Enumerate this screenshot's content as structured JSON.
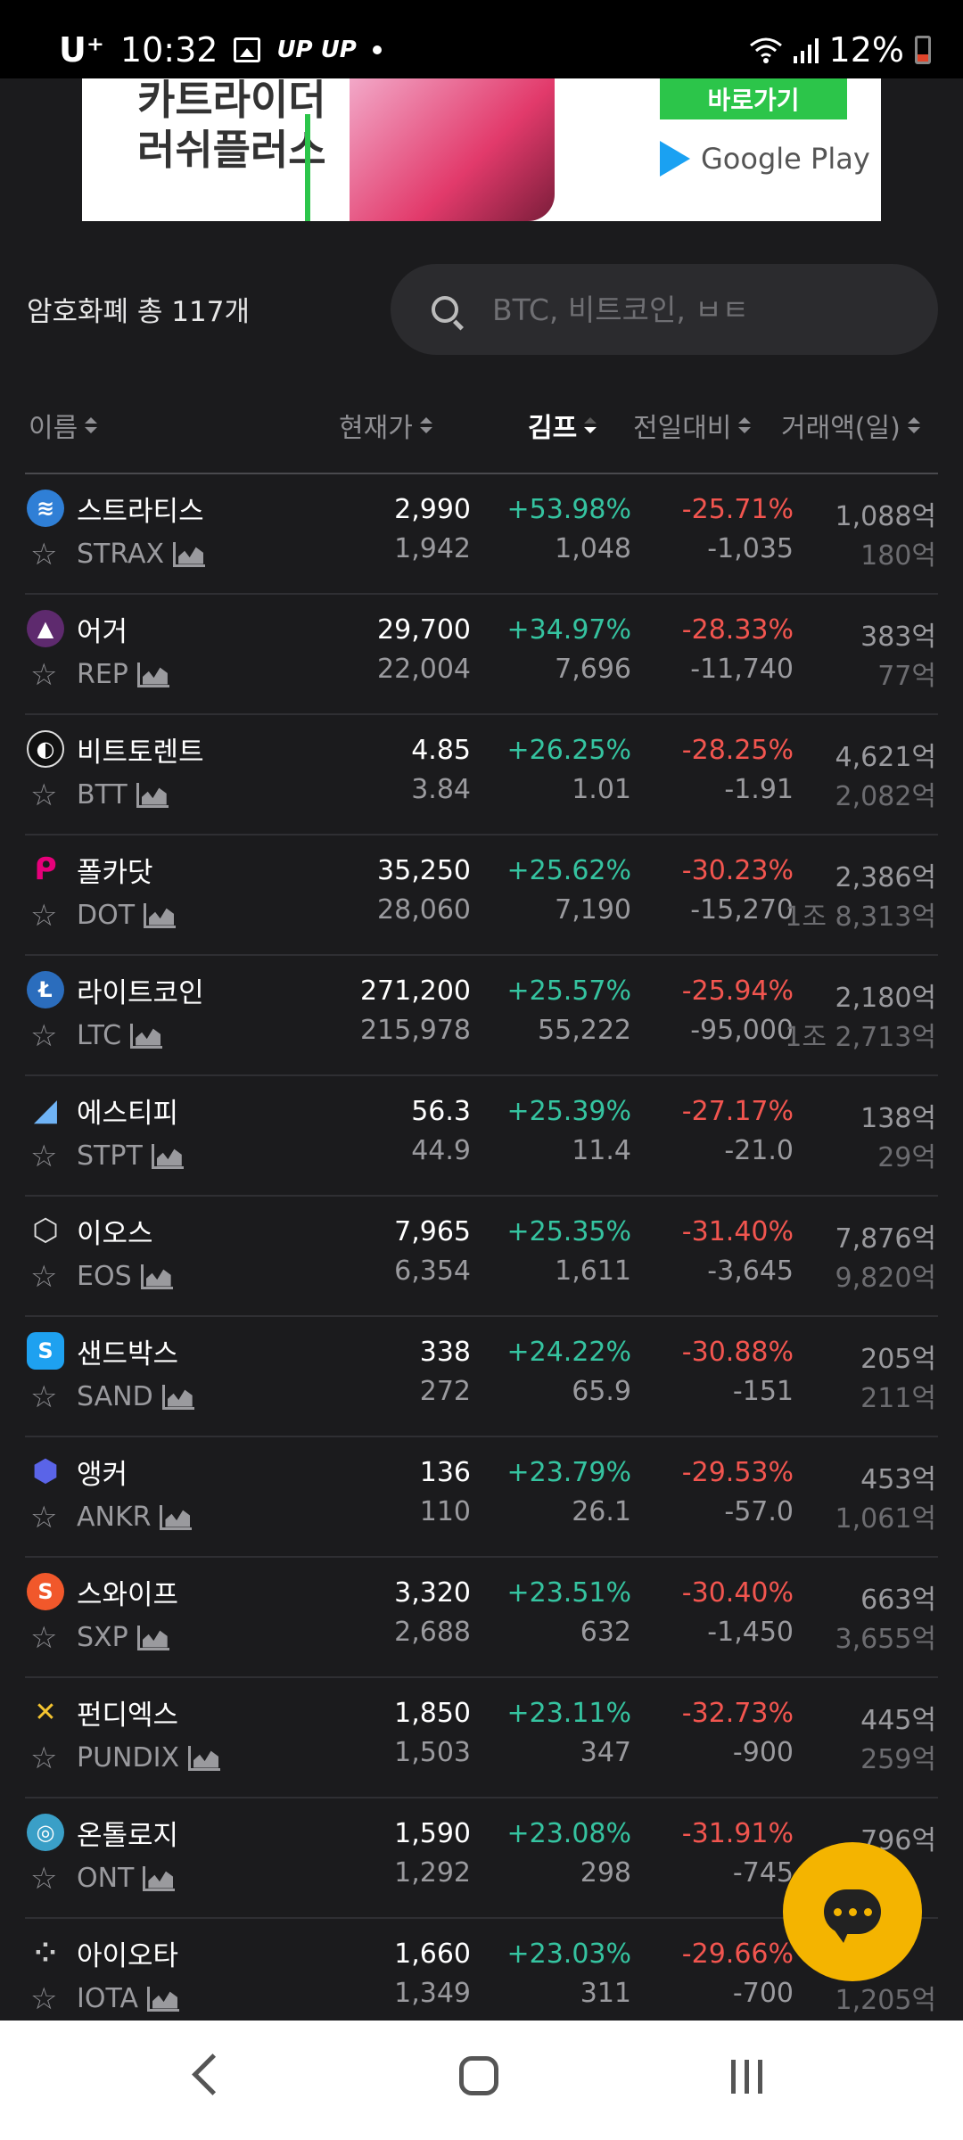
{
  "status_bar": {
    "carrier": "U⁺",
    "time": "10:32",
    "app_label": "UP UP",
    "battery": "12%"
  },
  "ad": {
    "headline": "카트라이더\n러쉬플러스",
    "cta": "바로가기",
    "store": "Google Play"
  },
  "header": {
    "count_label": "암호화폐 총 117개"
  },
  "search": {
    "placeholder": "BTC, 비트코인, ㅂㅌ"
  },
  "columns": {
    "name": "이름",
    "price": "현재가",
    "kimp": "김프",
    "change": "전일대비",
    "volume": "거래액(일)"
  },
  "rows": [
    {
      "name": "스트라티스",
      "ticker": "STRAX",
      "price": "2,990",
      "price_sub": "1,942",
      "kimp": "+53.98%",
      "kimp_sub": "1,048",
      "change": "-25.71%",
      "change_sub": "-1,035",
      "vol": "1,088억",
      "vol_sub": "180억",
      "icon": "stratis-icon",
      "icon_color": "#2f7fd6"
    },
    {
      "name": "어거",
      "ticker": "REP",
      "price": "29,700",
      "price_sub": "22,004",
      "kimp": "+34.97%",
      "kimp_sub": "7,696",
      "change": "-28.33%",
      "change_sub": "-11,740",
      "vol": "383억",
      "vol_sub": "77억",
      "icon": "augur-icon",
      "icon_color": "#5e2a6e"
    },
    {
      "name": "비트토렌트",
      "ticker": "BTT",
      "price": "4.85",
      "price_sub": "3.84",
      "kimp": "+26.25%",
      "kimp_sub": "1.01",
      "change": "-28.25%",
      "change_sub": "-1.91",
      "vol": "4,621억",
      "vol_sub": "2,082억",
      "icon": "bittorrent-icon",
      "icon_color": "#111111"
    },
    {
      "name": "폴카닷",
      "ticker": "DOT",
      "price": "35,250",
      "price_sub": "28,060",
      "kimp": "+25.62%",
      "kimp_sub": "7,190",
      "change": "-30.23%",
      "change_sub": "-15,270",
      "vol": "2,386억",
      "vol_sub": "1조 8,313억",
      "icon": "polkadot-icon",
      "icon_color": "#1b1b1d"
    },
    {
      "name": "라이트코인",
      "ticker": "LTC",
      "price": "271,200",
      "price_sub": "215,978",
      "kimp": "+25.57%",
      "kimp_sub": "55,222",
      "change": "-25.94%",
      "change_sub": "-95,000",
      "vol": "2,180억",
      "vol_sub": "1조 2,713억",
      "icon": "litecoin-icon",
      "icon_color": "#2b6dbd"
    },
    {
      "name": "에스티피",
      "ticker": "STPT",
      "price": "56.3",
      "price_sub": "44.9",
      "kimp": "+25.39%",
      "kimp_sub": "11.4",
      "change": "-27.17%",
      "change_sub": "-21.0",
      "vol": "138억",
      "vol_sub": "29억",
      "icon": "stpt-icon",
      "icon_color": "#1b1b1d"
    },
    {
      "name": "이오스",
      "ticker": "EOS",
      "price": "7,965",
      "price_sub": "6,354",
      "kimp": "+25.35%",
      "kimp_sub": "1,611",
      "change": "-31.40%",
      "change_sub": "-3,645",
      "vol": "7,876억",
      "vol_sub": "9,820억",
      "icon": "eos-icon",
      "icon_color": "#1b1b1d"
    },
    {
      "name": "샌드박스",
      "ticker": "SAND",
      "price": "338",
      "price_sub": "272",
      "kimp": "+24.22%",
      "kimp_sub": "65.9",
      "change": "-30.88%",
      "change_sub": "-151",
      "vol": "205억",
      "vol_sub": "211억",
      "icon": "sandbox-icon",
      "icon_color": "#1ea1f0"
    },
    {
      "name": "앵커",
      "ticker": "ANKR",
      "price": "136",
      "price_sub": "110",
      "kimp": "+23.79%",
      "kimp_sub": "26.1",
      "change": "-29.53%",
      "change_sub": "-57.0",
      "vol": "453억",
      "vol_sub": "1,061억",
      "icon": "ankr-icon",
      "icon_color": "#2b2e8c"
    },
    {
      "name": "스와이프",
      "ticker": "SXP",
      "price": "3,320",
      "price_sub": "2,688",
      "kimp": "+23.51%",
      "kimp_sub": "632",
      "change": "-30.40%",
      "change_sub": "-1,450",
      "vol": "663억",
      "vol_sub": "3,655억",
      "icon": "swipe-icon",
      "icon_color": "#f1582b"
    },
    {
      "name": "펀디엑스",
      "ticker": "PUNDIX",
      "price": "1,850",
      "price_sub": "1,503",
      "kimp": "+23.11%",
      "kimp_sub": "347",
      "change": "-32.73%",
      "change_sub": "-900",
      "vol": "445억",
      "vol_sub": "259억",
      "icon": "pundix-icon",
      "icon_color": "#111111"
    },
    {
      "name": "온톨로지",
      "ticker": "ONT",
      "price": "1,590",
      "price_sub": "1,292",
      "kimp": "+23.08%",
      "kimp_sub": "298",
      "change": "-31.91%",
      "change_sub": "-745",
      "vol": "796억",
      "vol_sub": "",
      "icon": "ontology-icon",
      "icon_color": "#3a9fc7"
    },
    {
      "name": "아이오타",
      "ticker": "IOTA",
      "price": "1,660",
      "price_sub": "1,349",
      "kimp": "+23.03%",
      "kimp_sub": "311",
      "change": "-29.66%",
      "change_sub": "-700",
      "vol": "",
      "vol_sub": "1,205억",
      "icon": "iota-icon",
      "icon_color": "#1b1b1d"
    }
  ],
  "colors": {
    "background": "#1b1b1d",
    "positive": "#35c3a0",
    "negative": "#f2554f",
    "fab": "#f4b400"
  }
}
